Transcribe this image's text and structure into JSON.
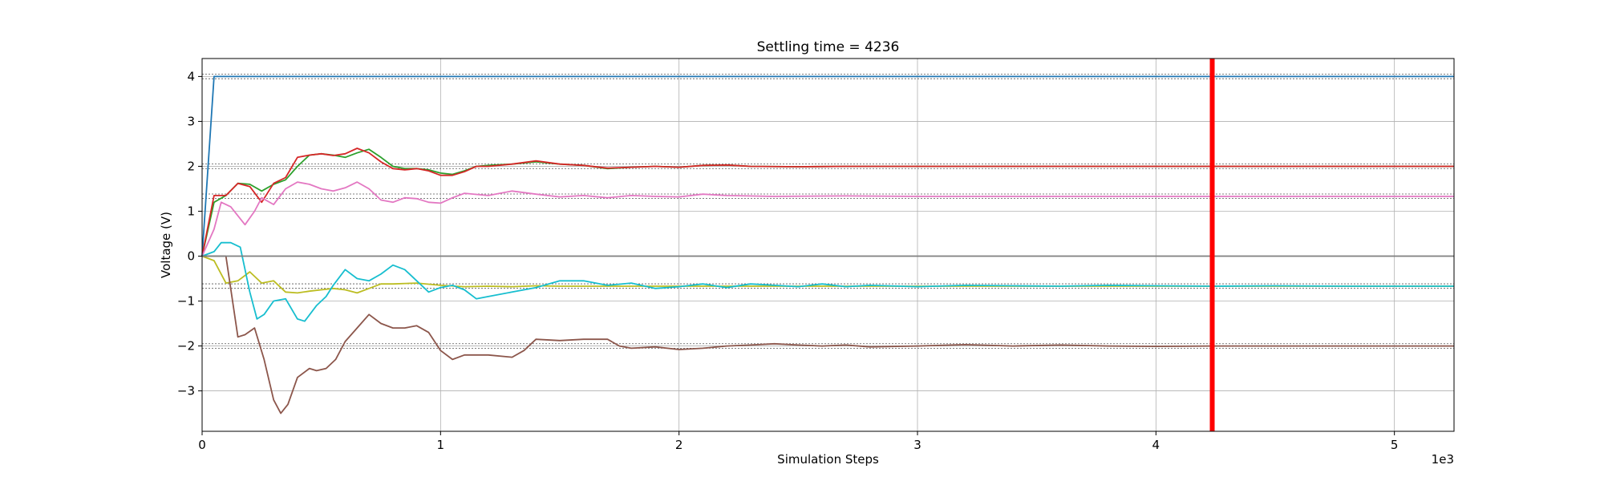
{
  "chart_data": {
    "type": "line",
    "title": "Settling time = 4236",
    "xlabel": "Simulation Steps",
    "ylabel": "Voltage (V)",
    "x_offset_text": "1e3",
    "xlim": [
      0,
      5250
    ],
    "ylim": [
      -3.9,
      4.4
    ],
    "x_ticks": [
      0,
      1000,
      2000,
      3000,
      4000,
      5000
    ],
    "x_tick_labels": [
      "0",
      "1",
      "2",
      "3",
      "4",
      "5"
    ],
    "y_ticks": [
      -3,
      -2,
      -1,
      0,
      1,
      2,
      3,
      4
    ],
    "y_tick_labels": [
      "−3",
      "−2",
      "−1",
      "0",
      "1",
      "2",
      "3",
      "4"
    ],
    "grid": true,
    "settling_line": {
      "x": 4236,
      "color": "#ff0000"
    },
    "reference_levels": [
      4.0,
      2.0,
      1.333,
      -0.667,
      -2.0
    ],
    "series": [
      {
        "color": "#1f77b4",
        "points": [
          [
            0,
            0
          ],
          [
            50,
            4
          ],
          [
            5250,
            4
          ]
        ]
      },
      {
        "color": "#2ca02c",
        "points": [
          [
            0,
            0
          ],
          [
            50,
            1.2
          ],
          [
            100,
            1.35
          ],
          [
            150,
            1.62
          ],
          [
            200,
            1.6
          ],
          [
            250,
            1.45
          ],
          [
            300,
            1.6
          ],
          [
            350,
            1.7
          ],
          [
            400,
            2.0
          ],
          [
            450,
            2.25
          ],
          [
            500,
            2.28
          ],
          [
            550,
            2.25
          ],
          [
            600,
            2.2
          ],
          [
            650,
            2.3
          ],
          [
            700,
            2.38
          ],
          [
            750,
            2.2
          ],
          [
            800,
            2.0
          ],
          [
            850,
            1.95
          ],
          [
            900,
            1.95
          ],
          [
            950,
            1.92
          ],
          [
            1000,
            1.85
          ],
          [
            1050,
            1.82
          ],
          [
            1100,
            1.9
          ],
          [
            1150,
            2.0
          ],
          [
            1200,
            2.02
          ],
          [
            1300,
            2.05
          ],
          [
            1400,
            2.1
          ],
          [
            1500,
            2.05
          ],
          [
            1600,
            2.02
          ],
          [
            1700,
            1.95
          ],
          [
            1800,
            1.98
          ],
          [
            1900,
            2.0
          ],
          [
            2000,
            1.98
          ],
          [
            2100,
            2.02
          ],
          [
            2200,
            2.03
          ],
          [
            2300,
            2.0
          ],
          [
            2500,
            1.99
          ],
          [
            2700,
            2.0
          ],
          [
            3000,
            2.0
          ],
          [
            5250,
            2.0
          ]
        ]
      },
      {
        "color": "#d62728",
        "points": [
          [
            0,
            0
          ],
          [
            50,
            1.35
          ],
          [
            100,
            1.35
          ],
          [
            150,
            1.62
          ],
          [
            200,
            1.55
          ],
          [
            250,
            1.2
          ],
          [
            300,
            1.62
          ],
          [
            350,
            1.75
          ],
          [
            400,
            2.2
          ],
          [
            450,
            2.25
          ],
          [
            500,
            2.28
          ],
          [
            550,
            2.24
          ],
          [
            600,
            2.28
          ],
          [
            650,
            2.4
          ],
          [
            700,
            2.3
          ],
          [
            750,
            2.1
          ],
          [
            800,
            1.95
          ],
          [
            850,
            1.92
          ],
          [
            900,
            1.95
          ],
          [
            950,
            1.9
          ],
          [
            1000,
            1.8
          ],
          [
            1050,
            1.8
          ],
          [
            1100,
            1.88
          ],
          [
            1150,
            2.0
          ],
          [
            1200,
            2.0
          ],
          [
            1300,
            2.05
          ],
          [
            1400,
            2.12
          ],
          [
            1500,
            2.05
          ],
          [
            1600,
            2.02
          ],
          [
            1700,
            1.96
          ],
          [
            1800,
            1.98
          ],
          [
            1900,
            2.0
          ],
          [
            2000,
            1.98
          ],
          [
            2100,
            2.02
          ],
          [
            2200,
            2.03
          ],
          [
            2300,
            2.0
          ],
          [
            2500,
            1.99
          ],
          [
            2700,
            2.0
          ],
          [
            3000,
            2.0
          ],
          [
            5250,
            2.0
          ]
        ]
      },
      {
        "color": "#e377c2",
        "points": [
          [
            0,
            0
          ],
          [
            50,
            0.6
          ],
          [
            80,
            1.2
          ],
          [
            120,
            1.1
          ],
          [
            180,
            0.7
          ],
          [
            220,
            1.0
          ],
          [
            250,
            1.3
          ],
          [
            300,
            1.15
          ],
          [
            350,
            1.5
          ],
          [
            400,
            1.65
          ],
          [
            450,
            1.6
          ],
          [
            500,
            1.5
          ],
          [
            550,
            1.45
          ],
          [
            600,
            1.52
          ],
          [
            650,
            1.65
          ],
          [
            700,
            1.5
          ],
          [
            750,
            1.25
          ],
          [
            800,
            1.2
          ],
          [
            850,
            1.3
          ],
          [
            900,
            1.28
          ],
          [
            950,
            1.2
          ],
          [
            1000,
            1.18
          ],
          [
            1050,
            1.3
          ],
          [
            1100,
            1.4
          ],
          [
            1200,
            1.35
          ],
          [
            1300,
            1.45
          ],
          [
            1400,
            1.38
          ],
          [
            1500,
            1.32
          ],
          [
            1600,
            1.35
          ],
          [
            1700,
            1.3
          ],
          [
            1800,
            1.35
          ],
          [
            1900,
            1.33
          ],
          [
            2000,
            1.32
          ],
          [
            2100,
            1.38
          ],
          [
            2200,
            1.35
          ],
          [
            2400,
            1.33
          ],
          [
            2700,
            1.34
          ],
          [
            3000,
            1.33
          ],
          [
            5250,
            1.33
          ]
        ]
      },
      {
        "color": "#bcbd22",
        "points": [
          [
            0,
            0
          ],
          [
            50,
            -0.1
          ],
          [
            100,
            -0.6
          ],
          [
            150,
            -0.55
          ],
          [
            200,
            -0.35
          ],
          [
            250,
            -0.6
          ],
          [
            300,
            -0.55
          ],
          [
            350,
            -0.8
          ],
          [
            400,
            -0.82
          ],
          [
            450,
            -0.78
          ],
          [
            500,
            -0.75
          ],
          [
            550,
            -0.72
          ],
          [
            600,
            -0.75
          ],
          [
            650,
            -0.82
          ],
          [
            700,
            -0.72
          ],
          [
            750,
            -0.62
          ],
          [
            800,
            -0.62
          ],
          [
            900,
            -0.6
          ],
          [
            1000,
            -0.65
          ],
          [
            1100,
            -0.68
          ],
          [
            1200,
            -0.67
          ],
          [
            1300,
            -0.68
          ],
          [
            1400,
            -0.66
          ],
          [
            1500,
            -0.67
          ],
          [
            1700,
            -0.67
          ],
          [
            2000,
            -0.67
          ],
          [
            5250,
            -0.67
          ]
        ]
      },
      {
        "color": "#17becf",
        "points": [
          [
            0,
            0
          ],
          [
            50,
            0.1
          ],
          [
            80,
            0.3
          ],
          [
            120,
            0.3
          ],
          [
            160,
            0.2
          ],
          [
            200,
            -0.8
          ],
          [
            230,
            -1.4
          ],
          [
            260,
            -1.3
          ],
          [
            300,
            -1.0
          ],
          [
            350,
            -0.95
          ],
          [
            400,
            -1.4
          ],
          [
            430,
            -1.45
          ],
          [
            480,
            -1.1
          ],
          [
            520,
            -0.9
          ],
          [
            550,
            -0.65
          ],
          [
            600,
            -0.3
          ],
          [
            650,
            -0.5
          ],
          [
            700,
            -0.55
          ],
          [
            750,
            -0.4
          ],
          [
            800,
            -0.2
          ],
          [
            850,
            -0.3
          ],
          [
            900,
            -0.55
          ],
          [
            950,
            -0.8
          ],
          [
            1000,
            -0.7
          ],
          [
            1050,
            -0.65
          ],
          [
            1100,
            -0.75
          ],
          [
            1150,
            -0.95
          ],
          [
            1200,
            -0.9
          ],
          [
            1300,
            -0.8
          ],
          [
            1400,
            -0.7
          ],
          [
            1500,
            -0.55
          ],
          [
            1600,
            -0.55
          ],
          [
            1700,
            -0.65
          ],
          [
            1800,
            -0.6
          ],
          [
            1900,
            -0.72
          ],
          [
            2000,
            -0.68
          ],
          [
            2100,
            -0.62
          ],
          [
            2200,
            -0.7
          ],
          [
            2300,
            -0.62
          ],
          [
            2400,
            -0.65
          ],
          [
            2500,
            -0.68
          ],
          [
            2600,
            -0.62
          ],
          [
            2700,
            -0.68
          ],
          [
            2800,
            -0.65
          ],
          [
            3000,
            -0.68
          ],
          [
            3200,
            -0.65
          ],
          [
            3400,
            -0.66
          ],
          [
            3600,
            -0.67
          ],
          [
            3800,
            -0.65
          ],
          [
            4000,
            -0.66
          ],
          [
            4236,
            -0.67
          ],
          [
            4500,
            -0.66
          ],
          [
            4800,
            -0.67
          ],
          [
            5250,
            -0.67
          ]
        ]
      },
      {
        "color": "#8c564b",
        "points": [
          [
            0,
            0
          ],
          [
            100,
            0
          ],
          [
            150,
            -1.8
          ],
          [
            180,
            -1.75
          ],
          [
            220,
            -1.6
          ],
          [
            260,
            -2.3
          ],
          [
            300,
            -3.2
          ],
          [
            330,
            -3.5
          ],
          [
            360,
            -3.3
          ],
          [
            400,
            -2.7
          ],
          [
            450,
            -2.5
          ],
          [
            480,
            -2.55
          ],
          [
            520,
            -2.5
          ],
          [
            560,
            -2.3
          ],
          [
            600,
            -1.9
          ],
          [
            650,
            -1.6
          ],
          [
            700,
            -1.3
          ],
          [
            750,
            -1.5
          ],
          [
            800,
            -1.6
          ],
          [
            850,
            -1.6
          ],
          [
            900,
            -1.55
          ],
          [
            950,
            -1.7
          ],
          [
            1000,
            -2.1
          ],
          [
            1050,
            -2.3
          ],
          [
            1100,
            -2.2
          ],
          [
            1200,
            -2.2
          ],
          [
            1300,
            -2.25
          ],
          [
            1350,
            -2.1
          ],
          [
            1400,
            -1.85
          ],
          [
            1500,
            -1.88
          ],
          [
            1600,
            -1.85
          ],
          [
            1700,
            -1.85
          ],
          [
            1750,
            -2.0
          ],
          [
            1800,
            -2.05
          ],
          [
            1900,
            -2.02
          ],
          [
            2000,
            -2.08
          ],
          [
            2100,
            -2.05
          ],
          [
            2200,
            -2.0
          ],
          [
            2300,
            -1.98
          ],
          [
            2400,
            -1.95
          ],
          [
            2500,
            -1.98
          ],
          [
            2600,
            -2.0
          ],
          [
            2700,
            -1.98
          ],
          [
            2800,
            -2.02
          ],
          [
            3000,
            -2.0
          ],
          [
            3200,
            -1.97
          ],
          [
            3400,
            -2.0
          ],
          [
            3600,
            -1.98
          ],
          [
            3800,
            -2.0
          ],
          [
            4000,
            -2.01
          ],
          [
            4236,
            -2.0
          ],
          [
            4500,
            -2.0
          ],
          [
            4800,
            -2.0
          ],
          [
            5250,
            -2.0
          ]
        ]
      },
      {
        "color": "#7f7f7f",
        "points": [
          [
            0,
            0
          ],
          [
            5250,
            0
          ]
        ]
      }
    ]
  }
}
